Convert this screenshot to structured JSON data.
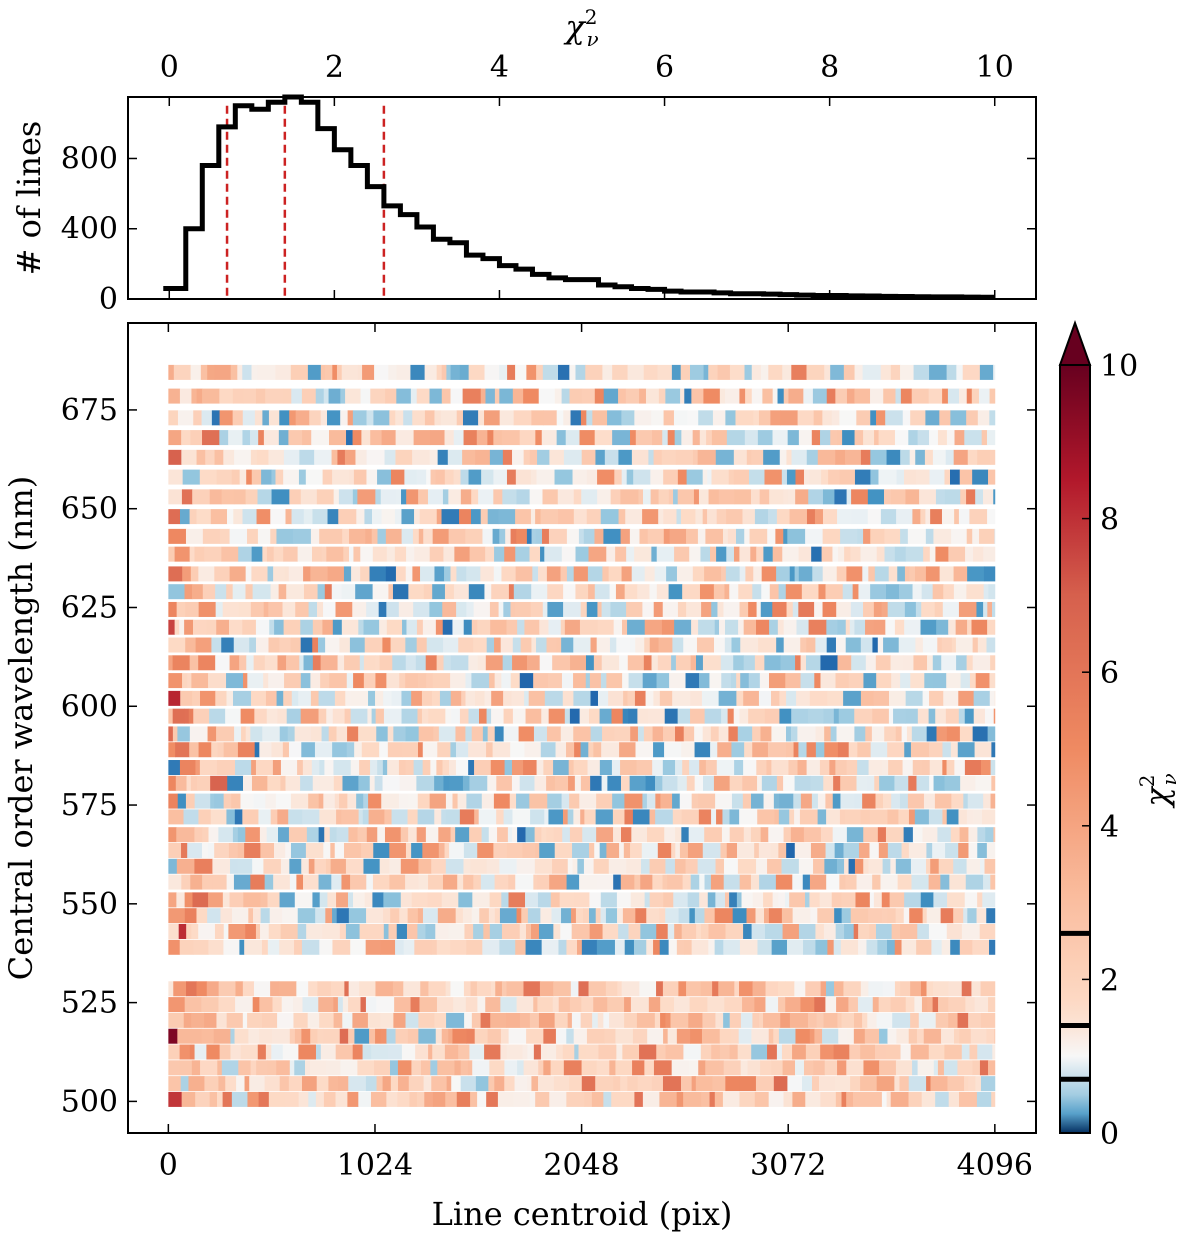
{
  "chart_data": [
    {
      "type": "histogram",
      "xlabel": "χ²_ν",
      "ylabel": "# of lines",
      "xlim": [
        -0.5,
        10.5
      ],
      "ylim": [
        0,
        1150
      ],
      "x_ticks": [
        "0",
        "2",
        "4",
        "6",
        "8",
        "10"
      ],
      "y_ticks": [
        "0",
        "400",
        "800"
      ],
      "x_axis_position": "top",
      "grid": false,
      "bin_width": 0.2,
      "bin_start": 0,
      "counts": [
        60,
        400,
        760,
        980,
        1100,
        1080,
        1120,
        1150,
        1120,
        970,
        850,
        760,
        640,
        530,
        480,
        410,
        340,
        320,
        250,
        230,
        190,
        170,
        140,
        120,
        110,
        110,
        80,
        70,
        60,
        55,
        45,
        40,
        40,
        35,
        30,
        30,
        28,
        25,
        22,
        20,
        20,
        18,
        17,
        15,
        14,
        13,
        12,
        12,
        11,
        10
      ],
      "vertical_lines": [
        {
          "x": 0.7,
          "color": "#cc2222",
          "style": "dashed"
        },
        {
          "x": 1.4,
          "color": "#cc2222",
          "style": "dashed"
        },
        {
          "x": 2.6,
          "color": "#cc2222",
          "style": "dashed"
        }
      ]
    },
    {
      "type": "heatmap",
      "xlabel": "Line centroid (pix)",
      "ylabel": "Central order wavelength (nm)",
      "xlim": [
        -200,
        4300
      ],
      "ylim": [
        492,
        697
      ],
      "x_ticks": [
        "0",
        "1024",
        "2048",
        "3072",
        "4096"
      ],
      "y_ticks": [
        "500",
        "525",
        "550",
        "575",
        "600",
        "625",
        "650",
        "675"
      ],
      "x_range_pix": [
        0,
        4096
      ],
      "order_wavelengths_nm": [
        500.5,
        504.5,
        508.5,
        512.5,
        516.5,
        520.5,
        524.5,
        528.5,
        539.0,
        543.0,
        547.0,
        551.0,
        555.5,
        559.5,
        563.5,
        567.5,
        572.0,
        576.0,
        580.5,
        584.5,
        589.0,
        593.0,
        597.5,
        602.0,
        606.5,
        611.0,
        615.5,
        620.0,
        624.5,
        629.0,
        633.5,
        638.5,
        643.0,
        648.0,
        653.0,
        658.0,
        663.0,
        668.0,
        673.0,
        678.5,
        684.5
      ],
      "colorbar": {
        "label": "χ²_ν",
        "ticks": [
          "0",
          "2",
          "4",
          "6",
          "8",
          "10"
        ],
        "range": [
          0,
          10
        ],
        "colormap": "RdBu_r (diverging, blue–white–red)",
        "extend": "max",
        "boundary_marks": [
          0.7,
          1.4,
          2.6
        ],
        "colors": {
          "low": "#08306b",
          "mid": "#f7f7f7",
          "high": "#67001f",
          "peak": "#ef8a62",
          "cool": "#4f9bcb"
        }
      },
      "grid": false
    }
  ]
}
